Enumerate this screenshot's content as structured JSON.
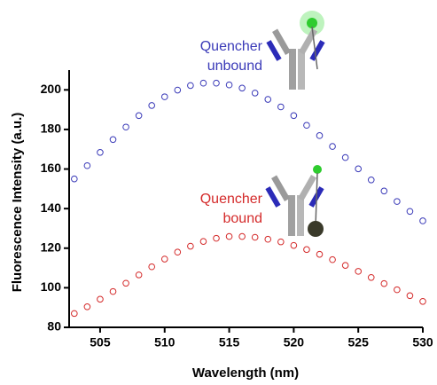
{
  "chart_data": {
    "type": "scatter",
    "x_label": "Wavelength (nm)",
    "y_label": "Fluorescence Intensity (a.u.)",
    "annotations": [
      {
        "lines": [
          "Quencher",
          "unbound"
        ],
        "color": "#3a3ab8"
      },
      {
        "lines": [
          "Quencher",
          "bound"
        ],
        "color": "#d42a2a"
      }
    ],
    "x": [
      503,
      504,
      505,
      506,
      507,
      508,
      509,
      510,
      511,
      512,
      513,
      514,
      515,
      516,
      517,
      518,
      519,
      520,
      521,
      522,
      523,
      524,
      525,
      526,
      527,
      528,
      529,
      530
    ],
    "series": [
      {
        "color": "#3a3ab8",
        "values": [
          155.0,
          161.7,
          168.4,
          174.9,
          181.2,
          187.0,
          192.1,
          196.5,
          199.9,
          202.2,
          203.4,
          203.4,
          202.5,
          200.9,
          198.4,
          195.2,
          191.4,
          187.0,
          182.1,
          176.9,
          171.4,
          165.8,
          160.1,
          154.5,
          148.9,
          143.6,
          138.6,
          133.8
        ]
      },
      {
        "color": "#d42a2a",
        "values": [
          87.0,
          90.4,
          94.2,
          98.1,
          102.3,
          106.5,
          110.6,
          114.5,
          118.0,
          121.0,
          123.4,
          125.0,
          125.9,
          125.9,
          125.5,
          124.5,
          123.2,
          121.4,
          119.3,
          116.9,
          114.2,
          111.3,
          108.3,
          105.2,
          102.1,
          99.0,
          96.0,
          93.1
        ]
      }
    ],
    "xlim": [
      502.6,
      530
    ],
    "ylim": [
      80,
      210
    ],
    "xticks": [
      505,
      510,
      515,
      520,
      525,
      530
    ],
    "yticks": [
      80,
      100,
      120,
      140,
      160,
      180,
      200
    ]
  }
}
